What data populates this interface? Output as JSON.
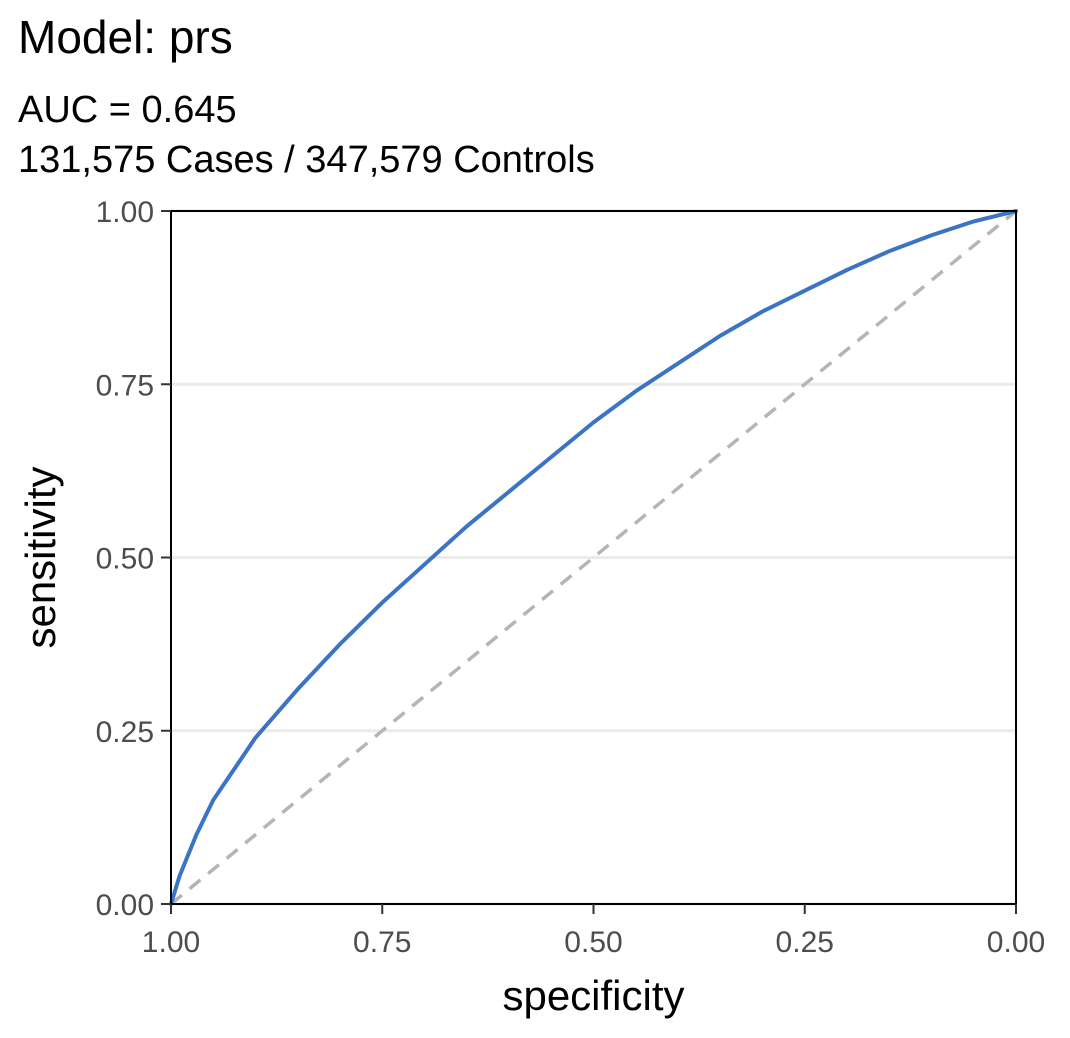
{
  "chart_data": {
    "type": "line",
    "title": "Model: prs",
    "subtitle_lines": [
      "AUC = 0.645",
      "131,575 Cases / 347,579 Controls"
    ],
    "xlabel": "specificity",
    "ylabel": "sensitivity",
    "xlim": [
      1.0,
      0.0
    ],
    "ylim": [
      0.0,
      1.0
    ],
    "x_reversed": true,
    "xticks": [
      "1.00",
      "0.75",
      "0.50",
      "0.25",
      "0.00"
    ],
    "yticks": [
      "0.00",
      "0.25",
      "0.50",
      "0.75",
      "1.00"
    ],
    "grid": "horizontal major",
    "series": [
      {
        "color": "#3b74c4",
        "x": [
          1.0,
          0.99,
          0.97,
          0.95,
          0.9,
          0.85,
          0.8,
          0.75,
          0.7,
          0.65,
          0.6,
          0.55,
          0.5,
          0.45,
          0.4,
          0.35,
          0.3,
          0.25,
          0.2,
          0.15,
          0.1,
          0.05,
          0.0
        ],
        "y": [
          0.0,
          0.04,
          0.1,
          0.15,
          0.24,
          0.31,
          0.375,
          0.435,
          0.49,
          0.545,
          0.595,
          0.645,
          0.695,
          0.74,
          0.78,
          0.82,
          0.855,
          0.885,
          0.915,
          0.942,
          0.965,
          0.985,
          1.0
        ]
      }
    ],
    "reference_line": {
      "color": "#b5b5b5",
      "style": "dashed",
      "x": [
        1.0,
        0.0
      ],
      "y": [
        0.0,
        1.0
      ]
    }
  }
}
